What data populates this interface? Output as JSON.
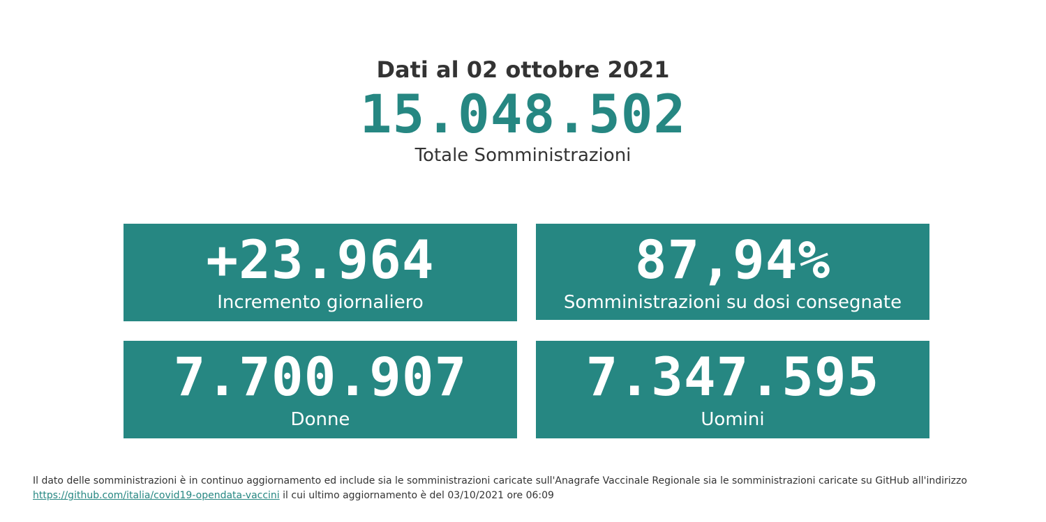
{
  "header": {
    "date_line": "Dati al 02 ottobre 2021",
    "total_value": "15.048.502",
    "total_label": "Totale Somministrazioni"
  },
  "cards": [
    {
      "value": "+23.964",
      "label": "Incremento giornaliero"
    },
    {
      "value": "87,94%",
      "label": "Somministrazioni su dosi consegnate"
    },
    {
      "value": "7.700.907",
      "label": "Donne"
    },
    {
      "value": "7.347.595",
      "label": "Uomini"
    }
  ],
  "footnote": {
    "text_before": "Il dato delle somministrazioni è in continuo aggiornamento ed include sia le somministrazioni caricate sull'Anagrafe Vaccinale Regionale sia le somministrazioni caricate su GitHub all'indirizzo",
    "link_text": "https://github.com/italia/covid19-opendata-vaccini",
    "text_after": " il cui ultimo aggiornamento è del 03/10/2021 ore 06:09"
  },
  "colors": {
    "accent": "#268782",
    "text": "#333333",
    "card_text": "#ffffff",
    "background": "#ffffff"
  }
}
